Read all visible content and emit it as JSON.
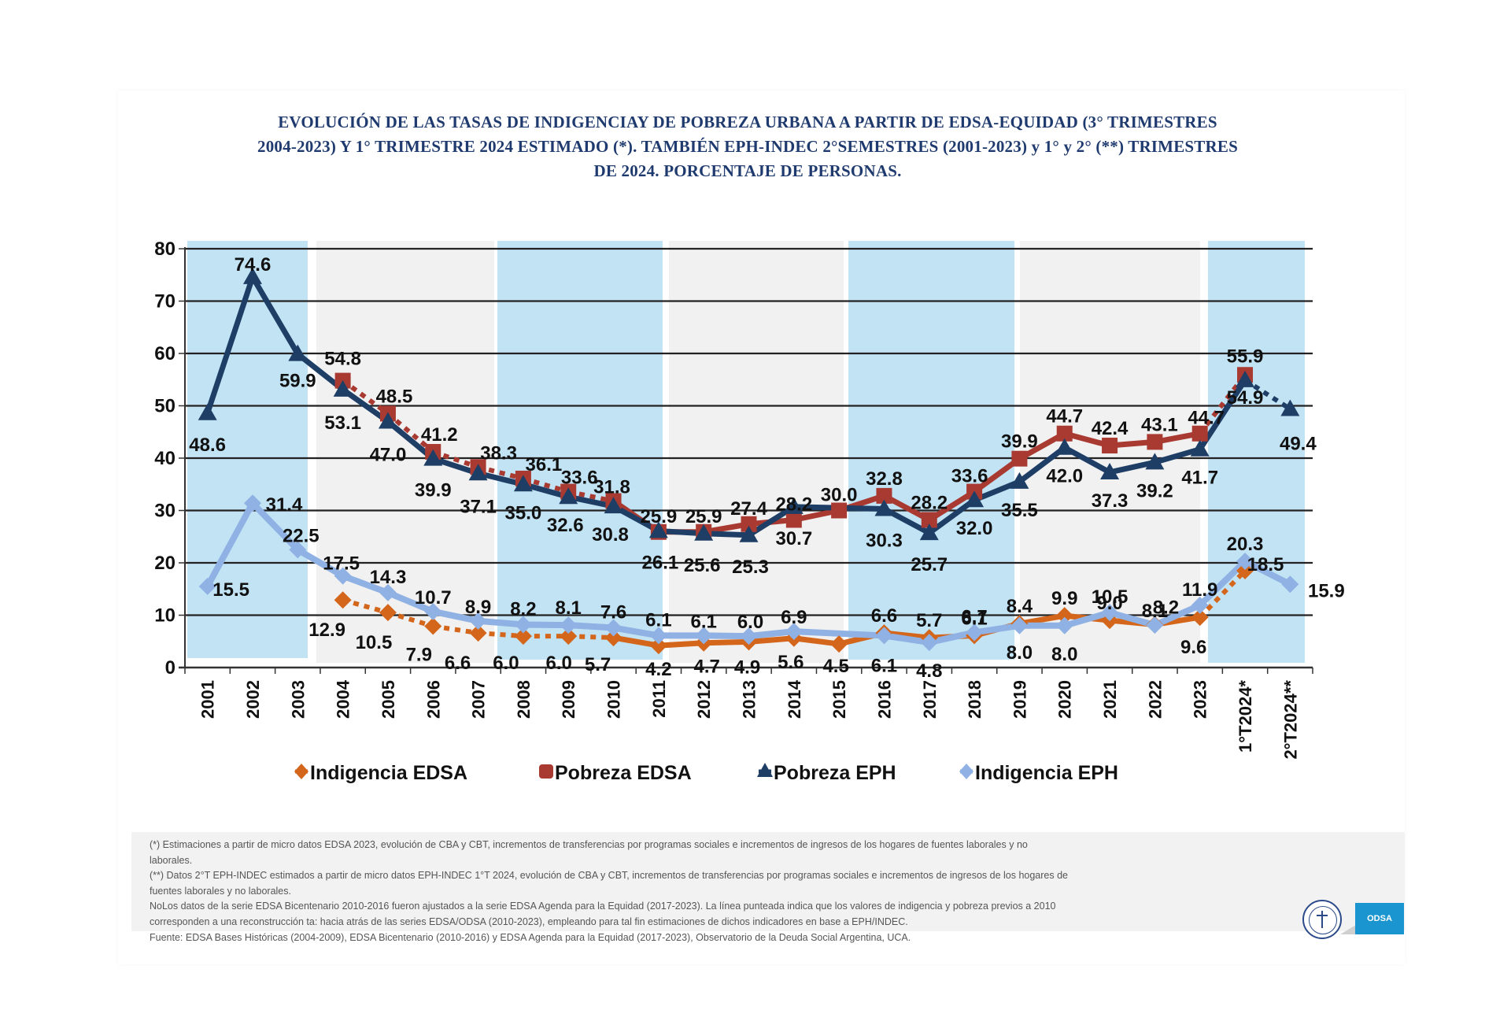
{
  "title": {
    "lines": [
      "EVOLUCIÓN DE LAS TASAS DE INDIGENCIAY DE POBREZA URBANA A PARTIR DE EDSA-EQUIDAD (3° TRIMESTRES",
      "2004-2023) Y 1° TRIMESTRE 2024 ESTIMADO (*). TAMBIÉN EPH-INDEC 2°SEMESTRES (2001-2023) y 1° y 2° (**) TRIMESTRES",
      "DE 2024. PORCENTAJE DE PERSONAS."
    ]
  },
  "chart_data": {
    "type": "line",
    "title": "EVOLUCIÓN DE LAS TASAS DE INDIGENCIAY DE POBREZA URBANA A PARTIR DE EDSA-EQUIDAD (3° TRIMESTRES 2004-2023) Y 1° TRIMESTRE 2024 ESTIMADO (*). TAMBIÉN EPH-INDEC 2°SEMESTRES (2001-2023) y 1° y 2° (**) TRIMESTRES DE 2024. PORCENTAJE DE PERSONAS.",
    "xlabel": "",
    "ylabel": "",
    "ylim": [
      0,
      80
    ],
    "yticks": [
      "0",
      "10",
      "20",
      "30",
      "40",
      "50",
      "60",
      "70",
      "80"
    ],
    "grid": true,
    "legend_position": "bottom",
    "categories": [
      "2001",
      "2002",
      "2003",
      "2004",
      "2005",
      "2006",
      "2007",
      "2008",
      "2009",
      "2010",
      "2011",
      "2012",
      "2013",
      "2014",
      "2015",
      "2016",
      "2017",
      "2018",
      "2019",
      "2020",
      "2021",
      "2022",
      "2023",
      "1°T2024*",
      "2°T2024**"
    ],
    "series": [
      {
        "name": "Indigencia EDSA",
        "color": "#d4661c",
        "marker": "diamond",
        "values": [
          null,
          null,
          null,
          12.9,
          10.5,
          7.9,
          6.6,
          6.0,
          6.0,
          5.7,
          4.2,
          4.7,
          4.9,
          5.6,
          4.5,
          6.6,
          5.7,
          6.1,
          8.4,
          9.9,
          9.0,
          8.2,
          9.6,
          18.5,
          null
        ],
        "labels": [
          null,
          null,
          null,
          "12.9",
          "10.5",
          "7.9",
          "6.6",
          "6.0",
          "6.0",
          "5.7",
          "4.2",
          "4.7",
          "4.9",
          "5.6",
          "4.5",
          "6.6",
          "5.7",
          "6.1",
          "8.4",
          "9.9",
          "9.0",
          "8.2",
          "9.6",
          "18.5",
          null
        ],
        "dotted_segments": [
          [
            3,
            9
          ],
          [
            22,
            23
          ]
        ]
      },
      {
        "name": "Pobreza EDSA",
        "color": "#a93a32",
        "marker": "square",
        "values": [
          null,
          null,
          null,
          54.8,
          48.5,
          41.2,
          38.3,
          36.1,
          33.6,
          31.8,
          25.9,
          25.9,
          27.4,
          28.2,
          30.0,
          32.8,
          28.2,
          33.6,
          39.9,
          44.7,
          42.4,
          43.1,
          44.7,
          55.9,
          null
        ],
        "labels": [
          null,
          null,
          null,
          "54.8",
          "48.5",
          "41.2",
          "38.3",
          "36.1",
          "33.6",
          "31.8",
          "25.9",
          "25.9",
          "27.4",
          "28.2",
          "30.0",
          "32.8",
          "28.2",
          "33.6",
          "39.9",
          "44.7",
          "42.4",
          "43.1",
          "44.7",
          "55.9",
          null
        ],
        "dotted_segments": [
          [
            3,
            9
          ],
          [
            22,
            23
          ]
        ]
      },
      {
        "name": "Pobreza EPH",
        "color": "#1f3e66",
        "marker": "triangle",
        "values": [
          48.6,
          74.6,
          59.9,
          53.1,
          47.0,
          39.9,
          37.1,
          35.0,
          32.6,
          30.8,
          26.1,
          25.6,
          25.3,
          30.7,
          null,
          30.3,
          25.7,
          32.0,
          35.5,
          42.0,
          37.3,
          39.2,
          41.7,
          54.9,
          49.4
        ],
        "labels": [
          "48.6",
          "74.6",
          "59.9",
          "53.1",
          "47.0",
          "39.9",
          "37.1",
          "35.0",
          "32.6",
          "30.8",
          "26.1",
          "25.6",
          "25.3",
          "30.7",
          null,
          "30.3",
          "25.7",
          "32.0",
          "35.5",
          "42.0",
          "37.3",
          "39.2",
          "41.7",
          "54.9",
          "49.4"
        ],
        "dotted_segments": [
          [
            23,
            24
          ]
        ]
      },
      {
        "name": "Indigencia EPH",
        "color": "#8fb1e3",
        "marker": "diamond",
        "values": [
          15.5,
          31.4,
          22.5,
          17.5,
          14.3,
          10.7,
          8.9,
          8.2,
          8.1,
          7.6,
          6.1,
          6.1,
          6.0,
          6.9,
          null,
          6.1,
          4.8,
          6.7,
          8.0,
          8.0,
          10.5,
          8.1,
          11.9,
          20.3,
          15.9
        ],
        "labels": [
          "15.5",
          "31.4",
          "22.5",
          "17.5",
          "14.3",
          "10.7",
          "8.9",
          "8.2",
          "8.1",
          "7.6",
          "6.1",
          "6.1",
          "6.0",
          "6.9",
          null,
          "6.1",
          "4.8",
          "6.7",
          "8.0",
          "8.0",
          "10.5",
          "8.1",
          "11.9",
          "20.3",
          "15.9"
        ],
        "dotted_segments": []
      }
    ],
    "background_bands": [
      "blue",
      "gray",
      "blue",
      "gray",
      "blue",
      "gray",
      "blue"
    ]
  },
  "colors": {
    "band_blue": "#c2e3f4",
    "band_gray": "#f1f1f1",
    "title": "#1f3a6e",
    "grid": "#222222"
  },
  "footer": {
    "notes": [
      "(*) Estimaciones a partir de micro datos EDSA 2023, evolución de CBA y CBT, incrementos de transferencias por programas sociales e incrementos de ingresos  de los hogares de fuentes laborales y no",
      "laborales.",
      "(**) Datos 2°T EPH-INDEC estimados a partir de micro datos EPH-INDEC 1°T 2024, evolución de CBA y CBT, incrementos de transferencias por programas sociales e incrementos de ingresos  de los hogares de",
      "fuentes laborales y no laborales.",
      "NoLos datos de la serie EDSA Bicentenario 2010-2016 fueron ajustados a la serie EDSA Agenda para la Equidad (2017-2023). La línea punteada indica que los valores de indigencia y pobreza previos a 2010",
      "corresponden a una reconstrucción ta: hacia atrás de las series EDSA/ODSA (2010-2023), empleando para tal fin estimaciones de dichos indicadores en base a EPH/INDEC.",
      "Fuente: EDSA Bases Históricas (2004-2009), EDSA Bicentenario (2010-2016) y EDSA Agenda para la Equidad (2017-2023), Observatorio de la Deuda Social Argentina, UCA."
    ],
    "logo_odsa_text": "ODSA"
  }
}
